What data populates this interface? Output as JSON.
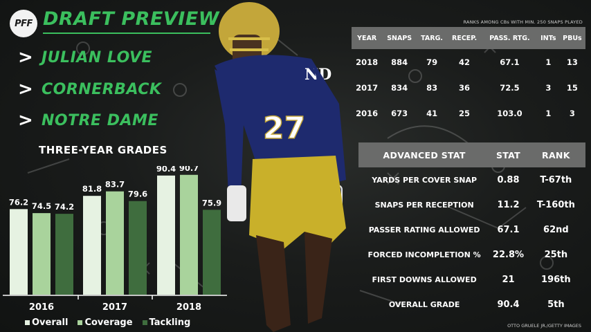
{
  "header": {
    "logo_text": "PFF",
    "title": "DRAFT PREVIEW",
    "chevron": ">",
    "player_name": "JULIAN LOVE",
    "position": "CORNERBACK",
    "school": "NOTRE DAME"
  },
  "grades": {
    "title": "THREE-YEAR GRADES",
    "legend": [
      "Overall",
      "Coverage",
      "Tackling"
    ]
  },
  "chart_data": {
    "type": "bar",
    "title": "THREE-YEAR GRADES",
    "categories": [
      "2016",
      "2017",
      "2018"
    ],
    "series": [
      {
        "name": "Overall",
        "values": [
          76.2,
          81.8,
          90.4
        ],
        "color": "#e6f2e2"
      },
      {
        "name": "Coverage",
        "values": [
          74.5,
          83.7,
          90.7
        ],
        "color": "#a9d39c"
      },
      {
        "name": "Tackling",
        "values": [
          74.2,
          79.6,
          75.9
        ],
        "color": "#3f6d3e"
      }
    ],
    "legend_position": "bottom",
    "grid": false,
    "axis_labels_shown": false
  },
  "stats_table": {
    "note": "RANKS AMONG CBs WITH MIN. 250 SNAPS PLAYED",
    "headers": [
      "YEAR",
      "SNAPS",
      "TARG.",
      "RECEP.",
      "PASS. RTG.",
      "INTs",
      "PBUs"
    ],
    "rows": [
      [
        "2018",
        "884",
        "79",
        "42",
        "67.1",
        "1",
        "13"
      ],
      [
        "2017",
        "834",
        "83",
        "36",
        "72.5",
        "3",
        "15"
      ],
      [
        "2016",
        "673",
        "41",
        "25",
        "103.0",
        "1",
        "3"
      ]
    ]
  },
  "advanced_table": {
    "headers": [
      "ADVANCED STAT",
      "STAT",
      "RANK"
    ],
    "rows": [
      [
        "YARDS PER COVER SNAP",
        "0.88",
        "T-67th"
      ],
      [
        "SNAPS PER RECEPTION",
        "11.2",
        "T-160th"
      ],
      [
        "PASSER RATING ALLOWED",
        "67.1",
        "62nd"
      ],
      [
        "FORCED INCOMPLETION %",
        "22.8%",
        "25th"
      ],
      [
        "FIRST DOWNS ALLOWED",
        "21",
        "196th"
      ],
      [
        "OVERALL GRADE",
        "90.4",
        "5th"
      ]
    ]
  },
  "photo": {
    "jersey_number": "27",
    "credit": "OTTO GRUELE JR./GETTY IMAGES"
  },
  "colors": {
    "accent_green": "#3bbf5e",
    "table_header_gray": "#6a6b6a",
    "jersey_navy": "#1e2a6e",
    "pants_gold": "#c9b02a"
  }
}
